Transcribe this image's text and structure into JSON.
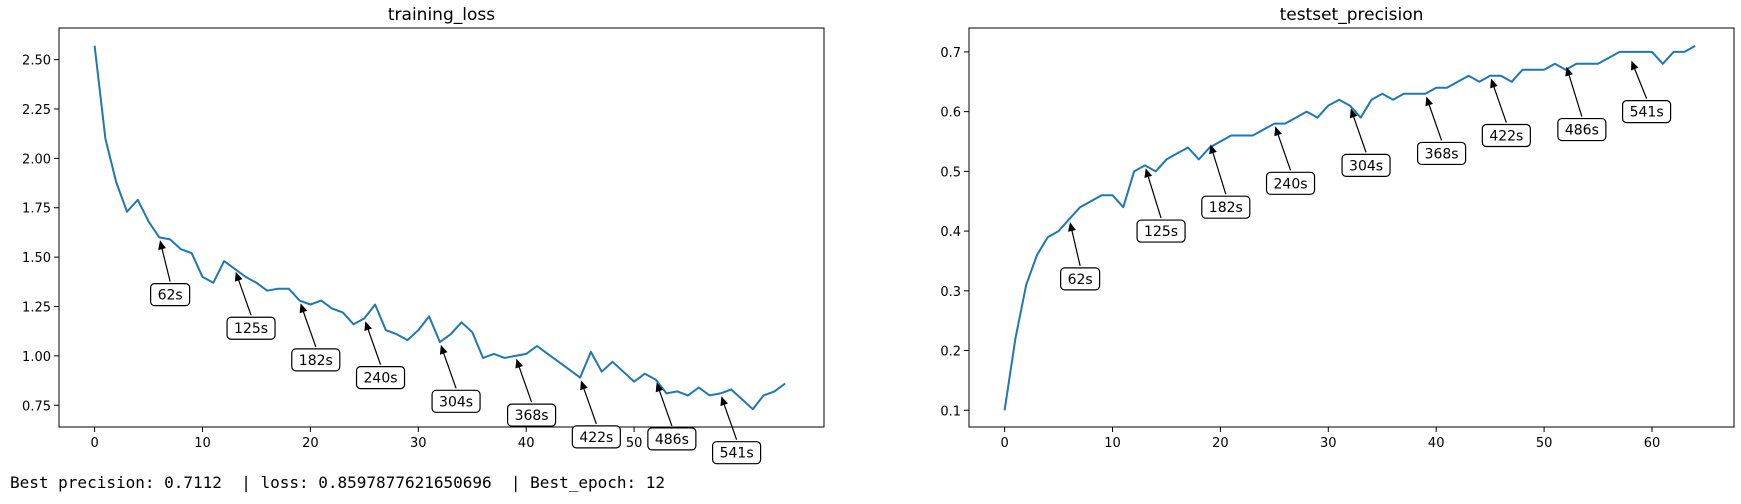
{
  "chart_data": [
    {
      "type": "line",
      "title": "training_loss",
      "xlabel": "",
      "ylabel": "",
      "xlim": [
        -3.3,
        67.6
      ],
      "ylim": [
        0.64,
        2.66
      ],
      "xticks": [
        0,
        10,
        20,
        30,
        40,
        50
      ],
      "yticks": [
        0.75,
        1.0,
        1.25,
        1.5,
        1.75,
        2.0,
        2.25,
        2.5
      ],
      "ytick_labels": [
        "0.75",
        "1.00",
        "1.25",
        "1.50",
        "1.75",
        "2.00",
        "2.25",
        "2.50"
      ],
      "grid": false,
      "series": [
        {
          "color": "#1f77b4",
          "x": [
            0,
            1,
            2,
            3,
            4,
            5,
            6,
            7,
            8,
            9,
            10,
            11,
            12,
            13,
            14,
            15,
            16,
            17,
            18,
            19,
            20,
            21,
            22,
            23,
            24,
            25,
            26,
            27,
            28,
            29,
            30,
            31,
            32,
            33,
            34,
            35,
            36,
            37,
            38,
            39,
            40,
            41,
            42,
            43,
            44,
            45,
            46,
            47,
            48,
            49,
            50,
            51,
            52,
            53,
            54,
            55,
            56,
            57,
            58,
            59,
            60,
            61,
            62,
            63,
            64
          ],
          "values": [
            2.57,
            2.1,
            1.88,
            1.73,
            1.79,
            1.68,
            1.6,
            1.59,
            1.54,
            1.52,
            1.4,
            1.37,
            1.48,
            1.44,
            1.4,
            1.37,
            1.33,
            1.34,
            1.34,
            1.28,
            1.26,
            1.28,
            1.24,
            1.22,
            1.16,
            1.19,
            1.26,
            1.13,
            1.11,
            1.08,
            1.13,
            1.2,
            1.07,
            1.11,
            1.17,
            1.12,
            0.99,
            1.01,
            0.99,
            1.0,
            1.01,
            1.05,
            1.01,
            0.97,
            0.93,
            0.89,
            1.02,
            0.92,
            0.97,
            0.92,
            0.87,
            0.91,
            0.88,
            0.81,
            0.82,
            0.8,
            0.84,
            0.8,
            0.81,
            0.83,
            0.78,
            0.73,
            0.8,
            0.82,
            0.86
          ]
        }
      ],
      "annotations": [
        {
          "text": "62s",
          "x": 6,
          "y": 1.6,
          "tx": 7,
          "ty": 1.31
        },
        {
          "text": "125s",
          "x": 13,
          "y": 1.44,
          "tx": 14.5,
          "ty": 1.14
        },
        {
          "text": "182s",
          "x": 19,
          "y": 1.28,
          "tx": 20.5,
          "ty": 0.98
        },
        {
          "text": "240s",
          "x": 25,
          "y": 1.19,
          "tx": 26.5,
          "ty": 0.89
        },
        {
          "text": "304s",
          "x": 32,
          "y": 1.07,
          "tx": 33.5,
          "ty": 0.77
        },
        {
          "text": "368s",
          "x": 39,
          "y": 1.0,
          "tx": 40.5,
          "ty": 0.7
        },
        {
          "text": "422s",
          "x": 45,
          "y": 0.89,
          "tx": 46.5,
          "ty": 0.59
        },
        {
          "text": "486s",
          "x": 52,
          "y": 0.88,
          "tx": 53.5,
          "ty": 0.58
        },
        {
          "text": "541s",
          "x": 58,
          "y": 0.81,
          "tx": 59.5,
          "ty": 0.51
        }
      ]
    },
    {
      "type": "line",
      "title": "testset_precision",
      "xlabel": "",
      "ylabel": "",
      "xlim": [
        -3.3,
        67.6
      ],
      "ylim": [
        0.072,
        0.74
      ],
      "xticks": [
        0,
        10,
        20,
        30,
        40,
        50,
        60
      ],
      "yticks": [
        0.1,
        0.2,
        0.3,
        0.4,
        0.5,
        0.6,
        0.7
      ],
      "ytick_labels": [
        "0.1",
        "0.2",
        "0.3",
        "0.4",
        "0.5",
        "0.6",
        "0.7"
      ],
      "grid": false,
      "series": [
        {
          "color": "#1f77b4",
          "x": [
            0,
            1,
            2,
            3,
            4,
            5,
            6,
            7,
            8,
            9,
            10,
            11,
            12,
            13,
            14,
            15,
            16,
            17,
            18,
            19,
            20,
            21,
            22,
            23,
            24,
            25,
            26,
            27,
            28,
            29,
            30,
            31,
            32,
            33,
            34,
            35,
            36,
            37,
            38,
            39,
            40,
            41,
            42,
            43,
            44,
            45,
            46,
            47,
            48,
            49,
            50,
            51,
            52,
            53,
            54,
            55,
            56,
            57,
            58,
            59,
            60,
            61,
            62,
            63,
            64
          ],
          "values": [
            0.1,
            0.22,
            0.31,
            0.36,
            0.39,
            0.4,
            0.42,
            0.44,
            0.45,
            0.46,
            0.46,
            0.44,
            0.5,
            0.51,
            0.5,
            0.52,
            0.53,
            0.54,
            0.52,
            0.54,
            0.55,
            0.56,
            0.56,
            0.56,
            0.57,
            0.58,
            0.58,
            0.59,
            0.6,
            0.59,
            0.61,
            0.62,
            0.61,
            0.59,
            0.62,
            0.63,
            0.62,
            0.63,
            0.63,
            0.63,
            0.64,
            0.64,
            0.65,
            0.66,
            0.65,
            0.66,
            0.66,
            0.65,
            0.67,
            0.67,
            0.67,
            0.68,
            0.67,
            0.68,
            0.68,
            0.68,
            0.69,
            0.7,
            0.7,
            0.7,
            0.7,
            0.68,
            0.7,
            0.7,
            0.71
          ]
        }
      ],
      "annotations": [
        {
          "text": "62s",
          "x": 6,
          "y": 0.42,
          "tx": 7,
          "ty": 0.32
        },
        {
          "text": "125s",
          "x": 13,
          "y": 0.51,
          "tx": 14.5,
          "ty": 0.4
        },
        {
          "text": "182s",
          "x": 19,
          "y": 0.55,
          "tx": 20.5,
          "ty": 0.44
        },
        {
          "text": "240s",
          "x": 25,
          "y": 0.58,
          "tx": 26.5,
          "ty": 0.48
        },
        {
          "text": "304s",
          "x": 32,
          "y": 0.61,
          "tx": 33.5,
          "ty": 0.51
        },
        {
          "text": "368s",
          "x": 39,
          "y": 0.63,
          "tx": 40.5,
          "ty": 0.53
        },
        {
          "text": "422s",
          "x": 45,
          "y": 0.66,
          "tx": 46.5,
          "ty": 0.56
        },
        {
          "text": "486s",
          "x": 52,
          "y": 0.68,
          "tx": 53.5,
          "ty": 0.57
        },
        {
          "text": "541s",
          "x": 58,
          "y": 0.69,
          "tx": 59.5,
          "ty": 0.6
        }
      ]
    }
  ],
  "footer": {
    "text": "Best precision: 0.7112  | loss: 0.8597877621650696  | Best_epoch: 12"
  }
}
